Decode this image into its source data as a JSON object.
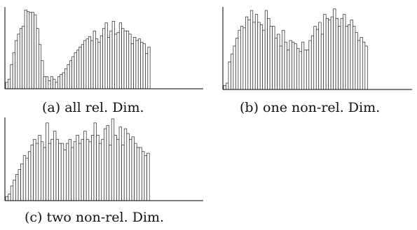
{
  "chart_data": [
    {
      "type": "bar",
      "caption": "(a) all rel. Dim.",
      "title": "",
      "xlabel": "",
      "ylabel": "",
      "ylim": [
        0,
        100
      ],
      "values": [
        8,
        12,
        30,
        45,
        60,
        68,
        75,
        78,
        98,
        96,
        95,
        95,
        92,
        75,
        55,
        35,
        15,
        15,
        10,
        15,
        12,
        8,
        15,
        18,
        20,
        25,
        30,
        35,
        40,
        45,
        48,
        52,
        55,
        60,
        62,
        65,
        60,
        72,
        62,
        58,
        66,
        75,
        82,
        64,
        72,
        84,
        68,
        70,
        82,
        75,
        72,
        72,
        68,
        56,
        64,
        60,
        62,
        58,
        56,
        44,
        52
      ]
    },
    {
      "type": "bar",
      "caption": "(b) one non-rel. Dim.",
      "title": "",
      "xlabel": "",
      "ylabel": "",
      "ylim": [
        0,
        100
      ],
      "values": [
        5,
        8,
        35,
        45,
        55,
        65,
        75,
        80,
        78,
        92,
        88,
        100,
        85,
        95,
        85,
        82,
        75,
        100,
        90,
        80,
        80,
        65,
        70,
        55,
        75,
        60,
        50,
        62,
        60,
        58,
        52,
        48,
        60,
        50,
        50,
        62,
        68,
        80,
        76,
        85,
        70,
        95,
        90,
        88,
        92,
        102,
        90,
        80,
        90,
        95,
        80,
        82,
        88,
        80,
        72,
        62,
        66,
        60,
        55
      ]
    },
    {
      "type": "bar",
      "caption": "(c) two non-rel. Dim.",
      "title": "",
      "xlabel": "",
      "ylabel": "",
      "ylim": [
        0,
        100
      ],
      "values": [
        5,
        8,
        18,
        25,
        32,
        38,
        45,
        55,
        52,
        60,
        68,
        75,
        70,
        80,
        72,
        65,
        95,
        70,
        75,
        85,
        75,
        70,
        70,
        62,
        70,
        75,
        65,
        72,
        80,
        70,
        75,
        85,
        75,
        72,
        80,
        95,
        80,
        70,
        75,
        88,
        92,
        68,
        100,
        80,
        75,
        90,
        68,
        88,
        82,
        75,
        78,
        70,
        65,
        65,
        60,
        55,
        58
      ]
    }
  ]
}
